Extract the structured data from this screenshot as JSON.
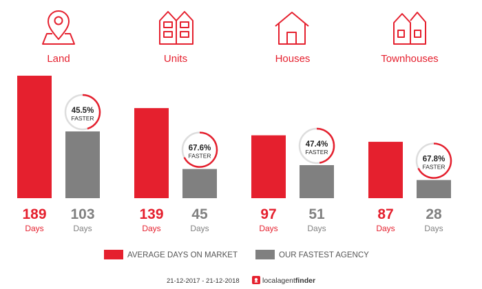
{
  "colors": {
    "accent": "#e5202e",
    "secondary": "#808080",
    "ring_track": "#dddddd"
  },
  "chart_data": {
    "type": "bar",
    "categories": [
      "Land",
      "Units",
      "Houses",
      "Townhouses"
    ],
    "category_icons": [
      "map-pin-icon",
      "apartment-building-icon",
      "house-icon",
      "townhouses-icon"
    ],
    "series": [
      {
        "name": "AVERAGE DAYS ON MARKET",
        "values": [
          189,
          139,
          97,
          87
        ]
      },
      {
        "name": "OUR FASTEST AGENCY",
        "values": [
          103,
          45,
          51,
          28
        ]
      }
    ],
    "unit_label": "Days",
    "faster_pct": [
      45.5,
      67.6,
      47.4,
      67.8
    ],
    "faster_pct_labels": [
      "45.5%",
      "67.6%",
      "47.4%",
      "67.8%"
    ],
    "faster_label": "FASTER",
    "ylim": [
      0,
      189
    ],
    "grid": false,
    "legend_position": "bottom"
  },
  "footer": {
    "date_range": "21-12-2017 - 21-12-2018",
    "brand_local": "localagent",
    "brand_finder": "finder"
  }
}
